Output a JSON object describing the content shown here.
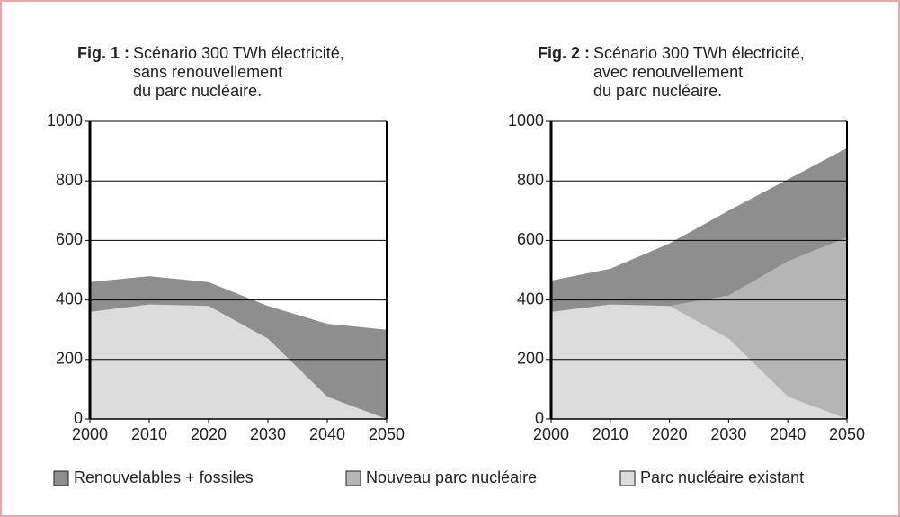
{
  "chart_data": [
    {
      "type": "area",
      "title_label": "Fig. 1 :",
      "title_lines": [
        "Scénario 300 TWh électricité,",
        "sans renouvellement",
        "du parc nucléaire."
      ],
      "x": [
        2000,
        2010,
        2020,
        2030,
        2040,
        2050
      ],
      "series": [
        {
          "color": "#dcdcdc",
          "values": [
            360,
            385,
            380,
            270,
            75,
            0
          ]
        },
        {
          "color": "#8e8e8e",
          "values": [
            100,
            95,
            80,
            110,
            245,
            300
          ]
        }
      ],
      "xlim": [
        2000,
        2050
      ],
      "xticks": [
        2000,
        2010,
        2020,
        2030,
        2040,
        2050
      ],
      "ylim": [
        0,
        1000
      ],
      "yticks": [
        0,
        200,
        400,
        600,
        800,
        1000
      ],
      "grid": true
    },
    {
      "type": "area",
      "title_label": "Fig. 2 :",
      "title_lines": [
        "Scénario 300 TWh électricité,",
        "avec renouvellement",
        "du parc nucléaire."
      ],
      "x": [
        2000,
        2010,
        2020,
        2030,
        2040,
        2050
      ],
      "series": [
        {
          "name": "Parc nucléaire existant",
          "color": "#dcdcdc",
          "values": [
            360,
            385,
            380,
            270,
            75,
            0
          ]
        },
        {
          "name": "Nouveau parc nucléaire",
          "color": "#b5b5b5",
          "values": [
            0,
            0,
            0,
            145,
            455,
            610
          ]
        },
        {
          "name": "Renouvelables + fossiles",
          "color": "#8e8e8e",
          "values": [
            105,
            120,
            210,
            285,
            275,
            300
          ]
        }
      ],
      "xlim": [
        2000,
        2050
      ],
      "xticks": [
        2000,
        2010,
        2020,
        2030,
        2040,
        2050
      ],
      "ylim": [
        0,
        1000
      ],
      "yticks": [
        0,
        200,
        400,
        600,
        800,
        1000
      ],
      "grid": true
    }
  ]
}
